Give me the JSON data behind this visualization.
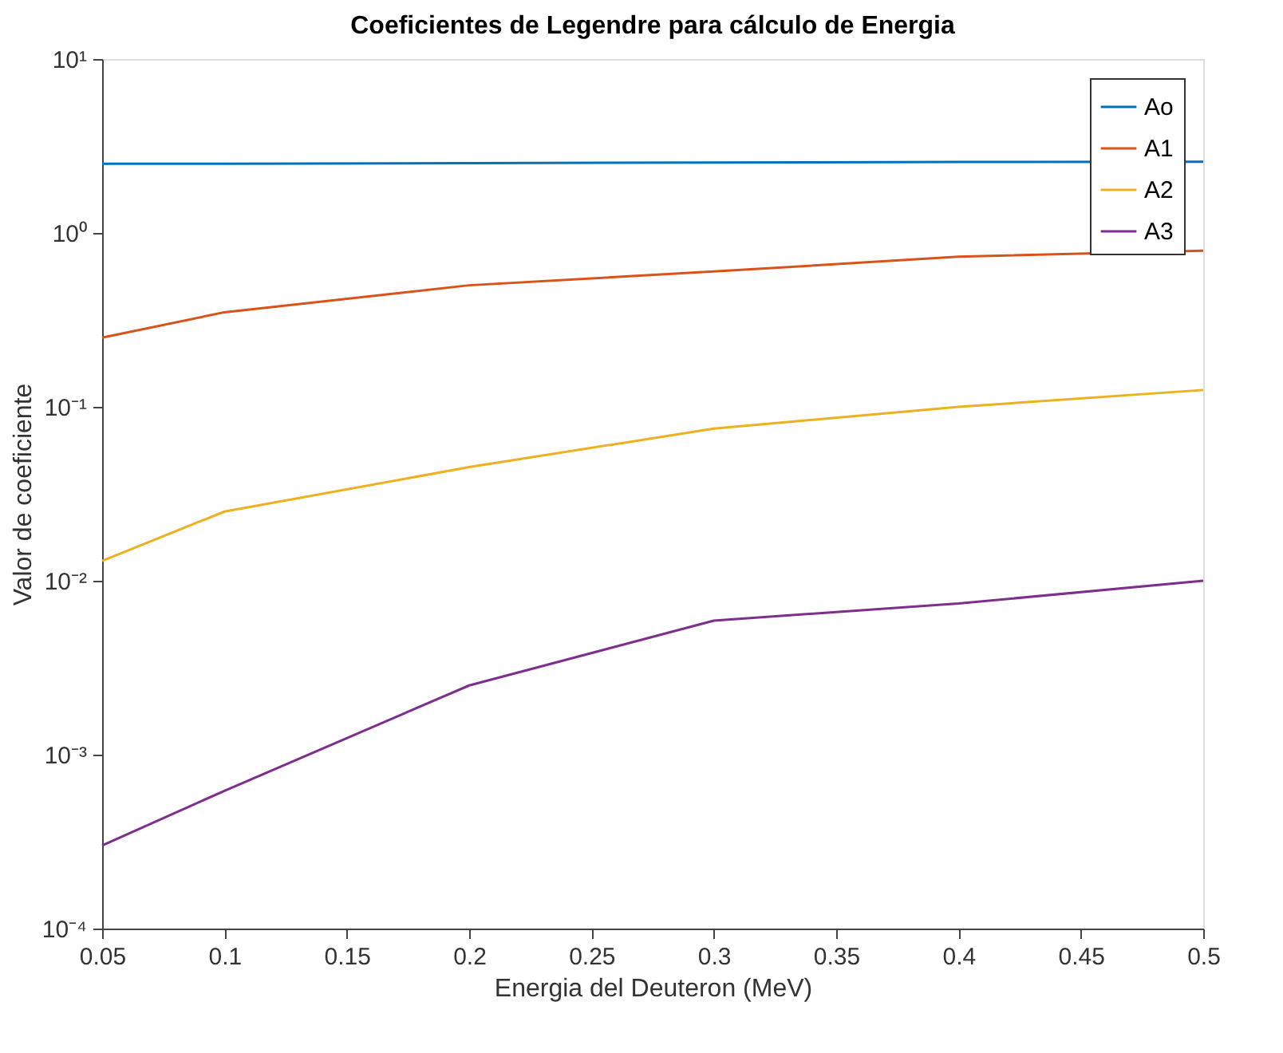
{
  "chart_data": {
    "type": "line",
    "title": "Coeficientes de Legendre para cálculo de Energia",
    "xlabel": "Energia del Deuteron (MeV)",
    "ylabel": "Valor de coeficiente",
    "x": [
      0.05,
      0.1,
      0.2,
      0.3,
      0.4,
      0.5
    ],
    "series": [
      {
        "name": "Ao",
        "color": "#0072bd",
        "values": [
          2.5,
          2.5,
          2.52,
          2.54,
          2.56,
          2.57
        ]
      },
      {
        "name": "A1",
        "color": "#d95319",
        "values": [
          0.25,
          0.35,
          0.5,
          0.6,
          0.73,
          0.79
        ]
      },
      {
        "name": "A2",
        "color": "#edb120",
        "values": [
          0.013,
          0.025,
          0.045,
          0.075,
          0.1,
          0.125
        ]
      },
      {
        "name": "A3",
        "color": "#7e2f8e",
        "values": [
          0.0003,
          0.00062,
          0.0025,
          0.0059,
          0.0074,
          0.01
        ]
      }
    ],
    "log": "y",
    "xlim": [
      0.05,
      0.5
    ],
    "xticks": [
      0.05,
      0.1,
      0.15,
      0.2,
      0.25,
      0.3,
      0.35,
      0.4,
      0.45,
      0.5
    ],
    "ylim": [
      0.0001,
      10
    ],
    "yticks": [
      {
        "value": 0.0001,
        "label": "10⁻⁴"
      },
      {
        "value": 0.001,
        "label": "10⁻³"
      },
      {
        "value": 0.01,
        "label": "10⁻²"
      },
      {
        "value": 0.1,
        "label": "10⁻¹"
      },
      {
        "value": 1,
        "label": "10⁰"
      },
      {
        "value": 10,
        "label": "10¹"
      }
    ],
    "grid": false,
    "legend": "top right",
    "marker": "none",
    "line_style": "solid"
  }
}
